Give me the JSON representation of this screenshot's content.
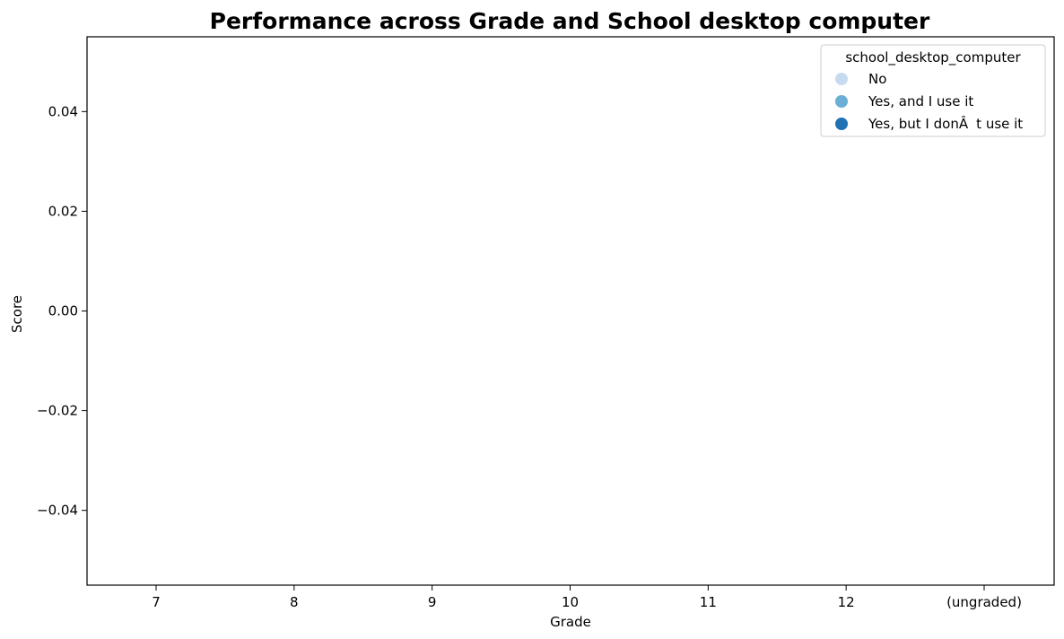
{
  "chart_data": {
    "type": "scatter",
    "title": "Performance across Grade and School desktop computer",
    "xlabel": "Grade",
    "ylabel": "Score",
    "categories": [
      "7",
      "8",
      "9",
      "10",
      "11",
      "12",
      "(ungraded)"
    ],
    "y_ticks": [
      -0.04,
      -0.02,
      0.0,
      0.02,
      0.04
    ],
    "y_tick_labels": [
      "−0.04",
      "−0.02",
      "0.00",
      "0.02",
      "0.04"
    ],
    "ylim": [
      -0.055,
      0.055
    ],
    "grid": false,
    "legend": {
      "title": "school_desktop_computer",
      "placement": "top-right",
      "entries": [
        {
          "label": "No",
          "color": "#c6dbef"
        },
        {
          "label": "Yes, and I use it",
          "color": "#6baed6"
        },
        {
          "label": "Yes, but I donÂt use it",
          "color": "#2171b5"
        }
      ]
    },
    "series": [
      {
        "name": "No",
        "values": []
      },
      {
        "name": "Yes, and I use it",
        "values": []
      },
      {
        "name": "Yes, but I donÂt use it",
        "values": []
      }
    ]
  }
}
